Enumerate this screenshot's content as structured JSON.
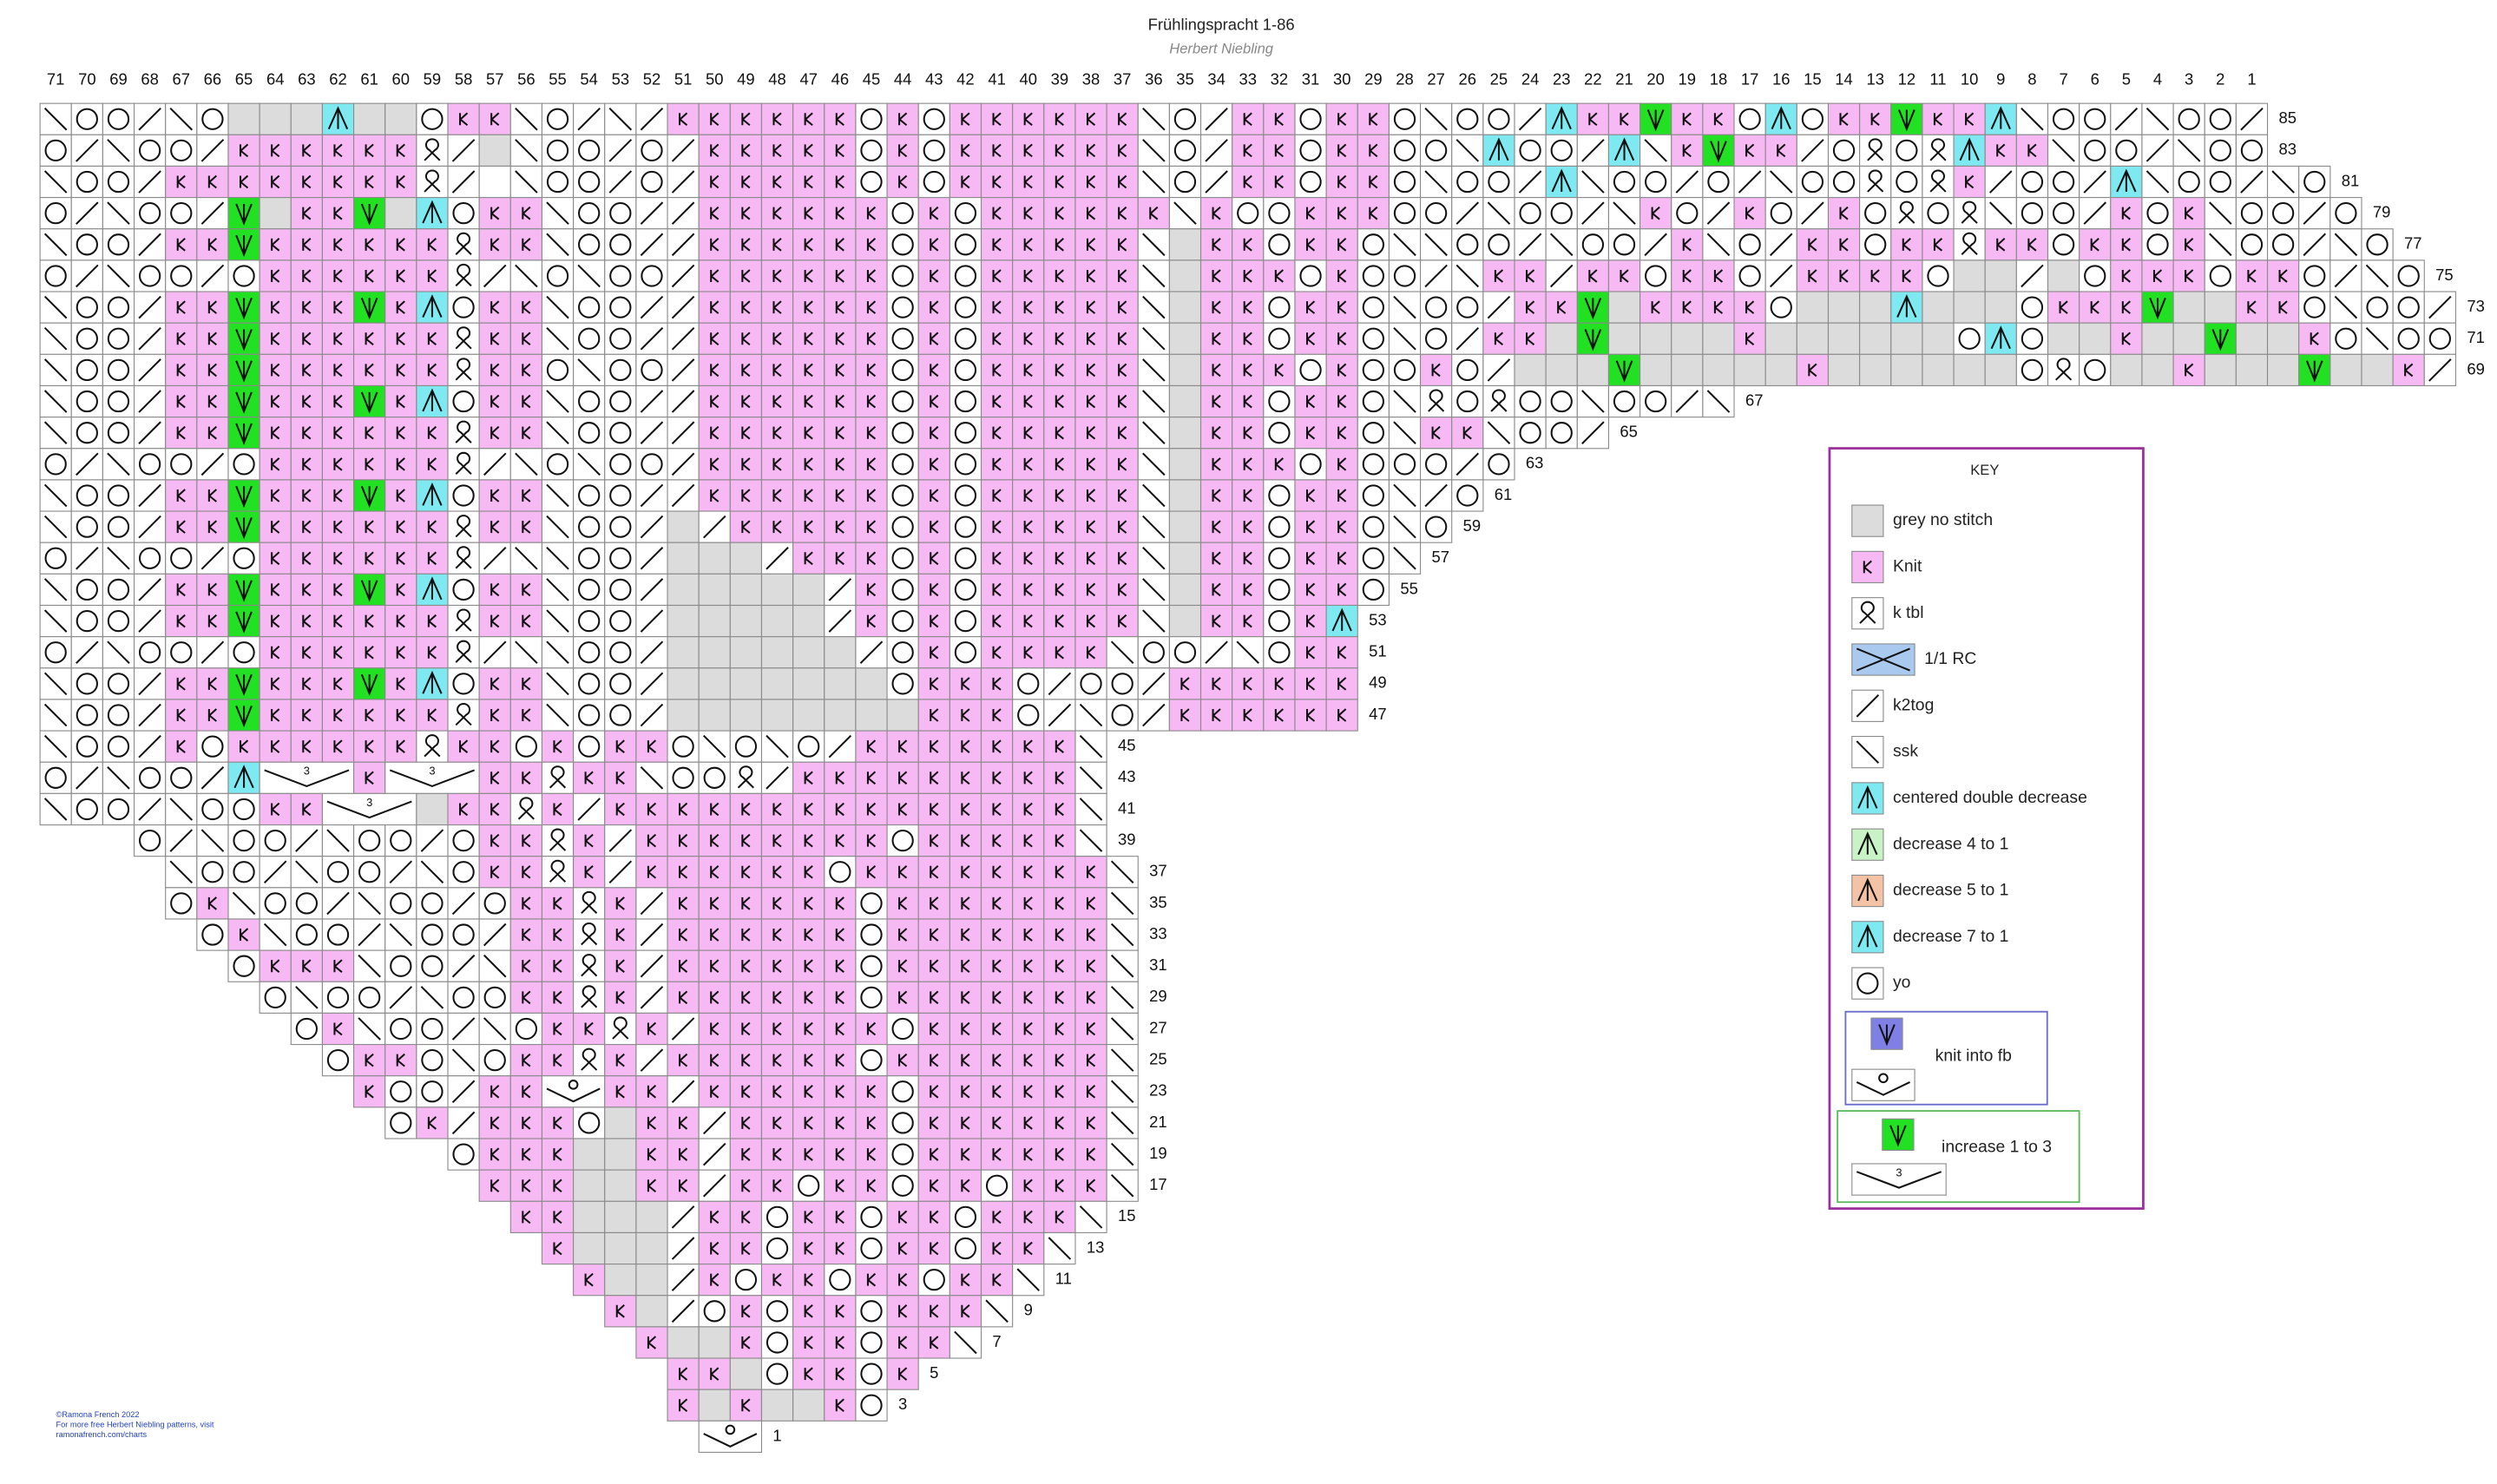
{
  "title": "Frühlingspracht 1-86",
  "author": "Herbert Niebling",
  "column_numbers": [
    71,
    70,
    69,
    68,
    67,
    66,
    65,
    64,
    63,
    62,
    61,
    60,
    59,
    58,
    57,
    56,
    55,
    54,
    53,
    52,
    51,
    50,
    49,
    48,
    47,
    46,
    45,
    44,
    43,
    42,
    41,
    40,
    39,
    38,
    37,
    36,
    35,
    34,
    33,
    32,
    31,
    30,
    29,
    28,
    27,
    26,
    25,
    24,
    23,
    22,
    21,
    20,
    19,
    18,
    17,
    16,
    15,
    14,
    13,
    12,
    11,
    10,
    9,
    8,
    7,
    6,
    5,
    4,
    3,
    2,
    1
  ],
  "rows": [
    {
      "label": 85,
      "stitches": "\\OO/\\OgggcggOkk\\O/\\/kkkkkkOkOkkkkkk\\O/kkOkkO\\OO/ckkGkkOcOkkGkkc\\OO/\\OO/"
    },
    {
      "label": 83,
      "stitches": "O/\\OO/kkkkkkQ/g\\OO/O/kkkkkOkOkkkkkk\\O/kkOkkOO\\cOO/c\\kGkk/OQOQckk\\OO/\\OO"
    },
    {
      "label": 81,
      "stitches": "\\OO/kkkkkkkkQ/w\\OO/O/kkkkkOkOkkkkkk\\O/kkOkkO\\OO/c\\OO/O/\\OOQOQk/OO/c\\OO/\\O"
    },
    {
      "label": 79,
      "stitches": "O/\\OO/GgkkGgcOkk\\OO//kkkkkkOkOkkkkkk\\kOOkkkOO/\\OO/\\kO/kO/kOQOQ\\OO/kOk\\OO/O"
    },
    {
      "label": 77,
      "stitches": "\\OO/kkGkkkkkkQkk\\OO//kkkkkkOkOkkkkk\\gkkOkkO\\\\OO/\\OO/k\\O/kkOkkQkkOkkOk\\OO/\\O"
    },
    {
      "label": 75,
      "stitches": "O/\\OO/OkkkkkkQ/\\O\\OO/kkkkkkOkOkkkkk\\gkkkOkOO/\\kk/kkOkkO/kkkkOgg/gOkkkOkkO/\\O"
    },
    {
      "label": 73,
      "stitches": "\\OO/kkGkkkGkcOkk\\OO//kkkkkkOkOkkkkk\\gkkOkkO\\OO/kkGgkkkkOgggcgggOkkkGggkkO\\OO/"
    },
    {
      "label": 71,
      "stitches": "\\OO/kkGkkkkkkQkk\\OO//kkkkkkOkOkkkkk\\gkkOkkO\\O/kkgGggggkggggggOcOggkggGggkO\\OO"
    },
    {
      "label": 69,
      "stitches": "\\OO/kkGkkkkkkQkkO\\OO/kkkkkkOkOkkkkk\\gkkkOkOOkO/gggGgggggkggggggOQOggkgggGggk/"
    },
    {
      "label": 67,
      "stitches": "\\OO/kkGkkkGkcOkk\\OO//kkkkkkOkOkkkkk\\gkkOkkO\\QOQOO\\OO/\\"
    },
    {
      "label": 65,
      "stitches": "\\OO/kkGkkkkkkQkk\\OO//kkkkkkOkOkkkkk\\gkkOkkO\\kk\\OO/"
    },
    {
      "label": 63,
      "stitches": "O/\\OO/OkkkkkkQ/\\O\\OO/kkkkkkOkOkkkkk\\gkkkOkOOO/O"
    },
    {
      "label": 61,
      "stitches": "\\OO/kkGkkkGkcOkk\\OO//kkkkkkOkOkkkkk\\gkkOkkO\\/O"
    },
    {
      "label": 59,
      "stitches": "\\OO/kkGkkkkkkQkk\\OO/g/kkkkkOkOkkkkk\\gkkOkkO\\O"
    },
    {
      "label": 57,
      "stitches": "O/\\OO/OkkkkkkQ/\\\\OO/ggg/kkkOkOkkkkk\\gkkOkkO\\"
    },
    {
      "label": 55,
      "stitches": "\\OO/kkGkkkGkcOkk\\OO/ggggg/kOkOkkkkk\\gkkOkkO"
    },
    {
      "label": 53,
      "stitches": "\\OO/kkGkkkkkkQkk\\OO/ggggg/kOkOkkkkk\\gkkOkc"
    },
    {
      "label": 51,
      "stitches": "O/\\OO/OkkkkkkQ/\\\\OO/gggggg/OkOkkkk\\OO/\\Okk"
    },
    {
      "label": 49,
      "stitches": "\\OO/kkGkkkGkcOkk\\OO/gggggggOkkkO/OO/kkkkkk"
    },
    {
      "label": 47,
      "stitches": "\\OO/kkGkkkkkkQkk\\OO/ggggggggkkkO/\\O/kkkkkk"
    },
    {
      "label": 45,
      "stitches": "\\OO/kOkkkkkkQkkOkOkkO\\O\\O/kkkkkkk\\"
    },
    {
      "label": 43,
      "stitches": "O/\\OO/c3__k3__kkQkk\\OOQ/kkkkkkkkk\\"
    },
    {
      "label": 41,
      "stitches": "\\OO/\\OOkk3__gkkQk/kkkkkkkkkkkkkkk\\"
    },
    {
      "label": 39,
      "stitches": "O/\\OO/\\OO/OkkQk/kkkkkkkkOkkkkk\\"
    },
    {
      "label": 37,
      "stitches": "\\OO/\\OO/\\OkkQk/kkkkkkOkkkkkkkk\\"
    },
    {
      "label": 35,
      "stitches": "Ok\\OO/\\OO/OkkQk/kkkkkkOkkkkkkk\\"
    },
    {
      "label": 33,
      "stitches": "Ok\\OO/\\OO/kkQk/kkkkkkOkkkkkkk\\"
    },
    {
      "label": 31,
      "stitches": "Okkk\\OO/\\kkQk/kkkkkkOkkkkkkk\\"
    },
    {
      "label": 29,
      "stitches": "O\\OO/\\OOkkQk/kkkkkkOkkkkkkk\\"
    },
    {
      "label": 27,
      "stitches": "Ok\\OO/\\OkkQk/kkkkkkOkkkkkk\\"
    },
    {
      "label": 25,
      "stitches": "OkkO\\OkkQk/kkkkkkOkkkkkkk\\"
    },
    {
      "label": 23,
      "stitches": "kOO/kkF_kk/kkkkkkOkkkkkk\\"
    },
    {
      "label": 21,
      "stitches": "Ok/kkkOgkk/kkkkkOkkkkkk\\"
    },
    {
      "label": 19,
      "stitches": "Okkkggkk/kkkkkOkkkkkk\\"
    },
    {
      "label": 17,
      "stitches": "kkkggkk/kkOkkOkkOkkk\\"
    },
    {
      "label": 15,
      "stitches": "kkggg/kkOkkOkkOkkk\\"
    },
    {
      "label": 13,
      "stitches": "kggg/kkOkkOkkOkk\\"
    },
    {
      "label": 11,
      "stitches": "kgg/kOkkOkkOkk\\"
    },
    {
      "label": 9,
      "stitches": "kg/OkOkkOkkk\\"
    },
    {
      "label": 7,
      "stitches": "kggkOkkOkk\\"
    },
    {
      "label": 5,
      "stitches": "kkgOkkOk"
    },
    {
      "label": 3,
      "stitches": "kgkggkO"
    },
    {
      "label": 1,
      "stitches": "F_"
    }
  ],
  "key": {
    "title": "KEY",
    "increase_bracket_label": "3",
    "items": [
      {
        "symbol": "g",
        "label": "grey no stitch"
      },
      {
        "symbol": "k",
        "label": "Knit"
      },
      {
        "symbol": "Q",
        "label": "k tbl"
      },
      {
        "symbol": "x_",
        "label": "1/1 RC"
      },
      {
        "symbol": "/",
        "label": "k2tog"
      },
      {
        "symbol": "\\",
        "label": "ssk"
      },
      {
        "symbol": "c",
        "label": "centered double decrease"
      },
      {
        "symbol": "4",
        "label": "decrease 4 to 1"
      },
      {
        "symbol": "5",
        "label": "decrease 5 to 1"
      },
      {
        "symbol": "7",
        "label": "decrease 7 to 1"
      },
      {
        "symbol": "O",
        "label": "yo"
      }
    ],
    "groups": [
      {
        "label": "knit into fb",
        "symbols": [
          "v",
          "F_"
        ]
      },
      {
        "label": "increase 1 to 3",
        "symbols": [
          "G",
          "3__"
        ]
      }
    ]
  },
  "footer": [
    "©Ramona French 2022",
    "For more free Herbert Niebling patterns, visit",
    "ramonafrench.com/charts"
  ]
}
